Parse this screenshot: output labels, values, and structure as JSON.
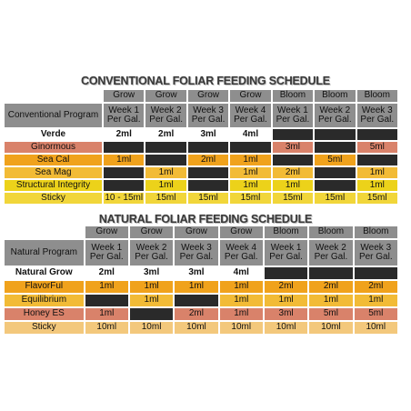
{
  "conventional": {
    "title": "CONVENTIONAL FOLIAR FEEDING SCHEDULE",
    "program_label": "Conventional Program",
    "columns": [
      {
        "stage": "Grow",
        "week": "Week 1",
        "unit": "Per Gal."
      },
      {
        "stage": "Grow",
        "week": "Week 2",
        "unit": "Per Gal."
      },
      {
        "stage": "Grow",
        "week": "Week 3",
        "unit": "Per Gal."
      },
      {
        "stage": "Grow",
        "week": "Week 4",
        "unit": "Per Gal."
      },
      {
        "stage": "Bloom",
        "week": "Week 1",
        "unit": "Per Gal."
      },
      {
        "stage": "Bloom",
        "week": "Week 2",
        "unit": "Per Gal."
      },
      {
        "stage": "Bloom",
        "week": "Week 3",
        "unit": "Per Gal."
      }
    ],
    "rows": [
      {
        "name": "Verde",
        "color": "#ffffff",
        "cells": [
          "2ml",
          "2ml",
          "3ml",
          "4ml",
          "",
          "",
          ""
        ]
      },
      {
        "name": "Ginormous",
        "color": "#d9826a",
        "cells": [
          "",
          "",
          "",
          "",
          "3ml",
          "",
          "5ml"
        ]
      },
      {
        "name": "Sea Cal",
        "color": "#f0a21c",
        "cells": [
          "1ml",
          "",
          "2ml",
          "1ml",
          "",
          "5ml",
          ""
        ]
      },
      {
        "name": "Sea Mag",
        "color": "#f2bb36",
        "cells": [
          "",
          "1ml",
          "",
          "1ml",
          "2ml",
          "",
          "1ml"
        ]
      },
      {
        "name": "Structural Integrity",
        "color": "#ecd21a",
        "cells": [
          "",
          "1ml",
          "",
          "1ml",
          "1ml",
          "",
          "1ml"
        ]
      },
      {
        "name": "Sticky",
        "color": "#f1d63a",
        "cells": [
          "10 - 15ml",
          "15ml",
          "15ml",
          "15ml",
          "15ml",
          "15ml",
          "15ml"
        ]
      }
    ]
  },
  "natural": {
    "title": "NATURAL FOLIAR FEEDING SCHEDULE",
    "program_label": "Natural Program",
    "columns": [
      {
        "stage": "Grow",
        "week": "Week 1",
        "unit": "Per Gal."
      },
      {
        "stage": "Grow",
        "week": "Week 2",
        "unit": "Per Gal."
      },
      {
        "stage": "Grow",
        "week": "Week 3",
        "unit": "Per Gal."
      },
      {
        "stage": "Grow",
        "week": "Week 4",
        "unit": "Per Gal."
      },
      {
        "stage": "Bloom",
        "week": "Week 1",
        "unit": "Per Gal."
      },
      {
        "stage": "Bloom",
        "week": "Week 2",
        "unit": "Per Gal."
      },
      {
        "stage": "Bloom",
        "week": "Week 3",
        "unit": "Per Gal."
      }
    ],
    "rows": [
      {
        "name": "Natural Grow",
        "color": "#ffffff",
        "cells": [
          "2ml",
          "3ml",
          "3ml",
          "4ml",
          "",
          "",
          ""
        ]
      },
      {
        "name": "FlavorFul",
        "color": "#f0a21c",
        "cells": [
          "1ml",
          "1ml",
          "1ml",
          "1ml",
          "2ml",
          "2ml",
          "2ml"
        ]
      },
      {
        "name": "Equilibrium",
        "color": "#f2bb36",
        "cells": [
          "",
          "1ml",
          "",
          "1ml",
          "1ml",
          "1ml",
          "1ml"
        ]
      },
      {
        "name": "Honey ES",
        "color": "#d9826a",
        "cells": [
          "1ml",
          "",
          "2ml",
          "1ml",
          "3ml",
          "5ml",
          "5ml"
        ]
      },
      {
        "name": "Sticky",
        "color": "#f3c87c",
        "cells": [
          "10ml",
          "10ml",
          "10ml",
          "10ml",
          "10ml",
          "10ml",
          "10ml"
        ]
      }
    ]
  }
}
